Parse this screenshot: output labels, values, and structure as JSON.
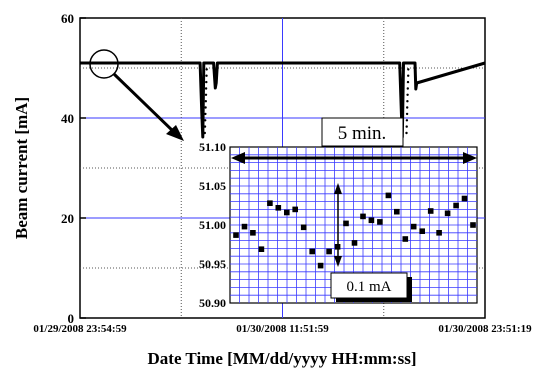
{
  "chart_data": [
    {
      "type": "line",
      "xlabel": "Date Time [MM/dd/yyyy HH:mm:ss]",
      "ylabel": "Beam current [mA]",
      "ylim": [
        0,
        60
      ],
      "yticks": [
        0,
        20,
        40,
        60
      ],
      "xlim": [
        "01/29/2008 23:54:59",
        "01/30/2008 23:51:19"
      ],
      "xtick_labels": [
        "01/29/2008 23:54:59",
        "01/30/2008 11:51:59",
        "01/30/2008 23:51:19"
      ],
      "grid": true,
      "series": [
        {
          "x_hours": [
            0.0,
            7.1,
            7.2,
            7.26,
            7.32,
            7.5,
            7.8,
            7.9,
            8.0,
            8.05,
            8.12,
            18.9,
            19.0,
            19.05,
            19.12,
            19.2,
            19.6,
            19.8,
            19.85,
            19.9,
            23.94
          ],
          "values": [
            51.0,
            51.0,
            41.0,
            36.2,
            51.0,
            51.0,
            51.0,
            51.0,
            46.0,
            47.0,
            51.0,
            51.0,
            41.0,
            36.2,
            51.0,
            51.0,
            51.0,
            51.0,
            45.8,
            47.0,
            51.0
          ]
        }
      ],
      "annotations": []
    },
    {
      "type": "scatter",
      "inset": true,
      "ylim": [
        50.9,
        51.1
      ],
      "yticks": [
        "51.10",
        "51.05",
        "51.00",
        "50.95",
        "50.90"
      ],
      "grid": true,
      "x_index": [
        1,
        2,
        3,
        4,
        5,
        6,
        7,
        8,
        9,
        10,
        11,
        12,
        13,
        14,
        15,
        16,
        17,
        18,
        19,
        20,
        21,
        22,
        23,
        24,
        25,
        26,
        27,
        28,
        29
      ],
      "values": [
        50.987,
        50.998,
        50.99,
        50.969,
        51.028,
        51.022,
        51.016,
        51.02,
        50.997,
        50.966,
        50.948,
        50.966,
        50.972,
        51.002,
        50.977,
        51.011,
        51.006,
        51.004,
        51.038,
        51.017,
        50.982,
        50.998,
        50.992,
        51.018,
        50.99,
        51.015,
        51.025,
        51.034,
        51.0
      ],
      "annotations": [
        "5 min.",
        "0.1 mA"
      ]
    }
  ]
}
